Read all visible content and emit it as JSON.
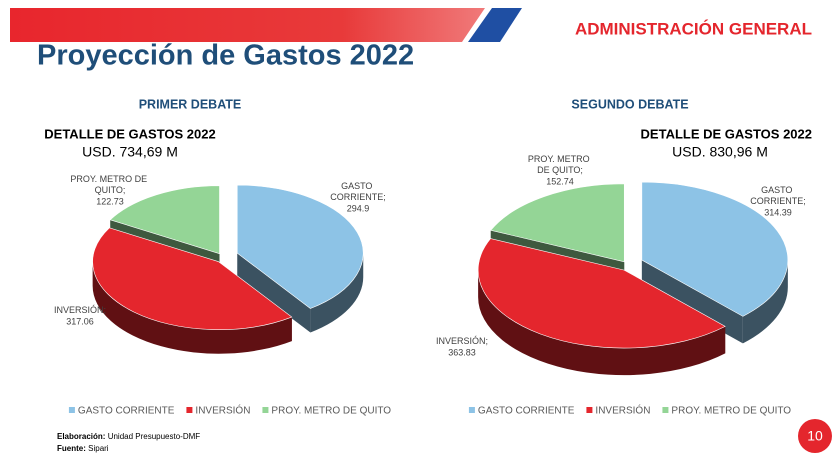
{
  "header": {
    "title": "Proyección de Gastos 2022",
    "section": "ADMINISTRACIÓN GENERAL"
  },
  "chart_data": [
    {
      "type": "pie",
      "title": "PRIMER DEBATE",
      "subtitle": "DETALLE DE GASTOS 2022",
      "total": "USD. 734,69 M",
      "categories": [
        "GASTO CORRIENTE",
        "INVERSIÓN",
        "PROY. METRO DE QUITO"
      ],
      "label_names": [
        "GASTO CORRIENTE;",
        "INVERSIÓN;",
        "PROY. METRO DE QUITO;"
      ],
      "values": [
        294.9,
        317.06,
        122.73
      ],
      "colors": [
        "#8dc3e6",
        "#e4262d",
        "#94d596"
      ],
      "legend": "bottom"
    },
    {
      "type": "pie",
      "title": "SEGUNDO DEBATE",
      "subtitle": "DETALLE DE GASTOS 2022",
      "total": "USD. 830,96 M",
      "categories": [
        "GASTO CORRIENTE",
        "INVERSIÓN",
        "PROY. METRO DE QUITO"
      ],
      "label_names": [
        "GASTO CORRIENTE;",
        "INVERSIÓN;",
        "PROY. METRO DE QUITO;"
      ],
      "values": [
        314.39,
        363.83,
        152.74
      ],
      "colors": [
        "#8dc3e6",
        "#e4262d",
        "#94d596"
      ],
      "legend": "bottom"
    }
  ],
  "footer": {
    "credit_label": "Elaboración:",
    "credit": "Unidad Presupuesto-DMF",
    "source_label": "Fuente:",
    "source": "Sipari"
  },
  "page_number": "10"
}
